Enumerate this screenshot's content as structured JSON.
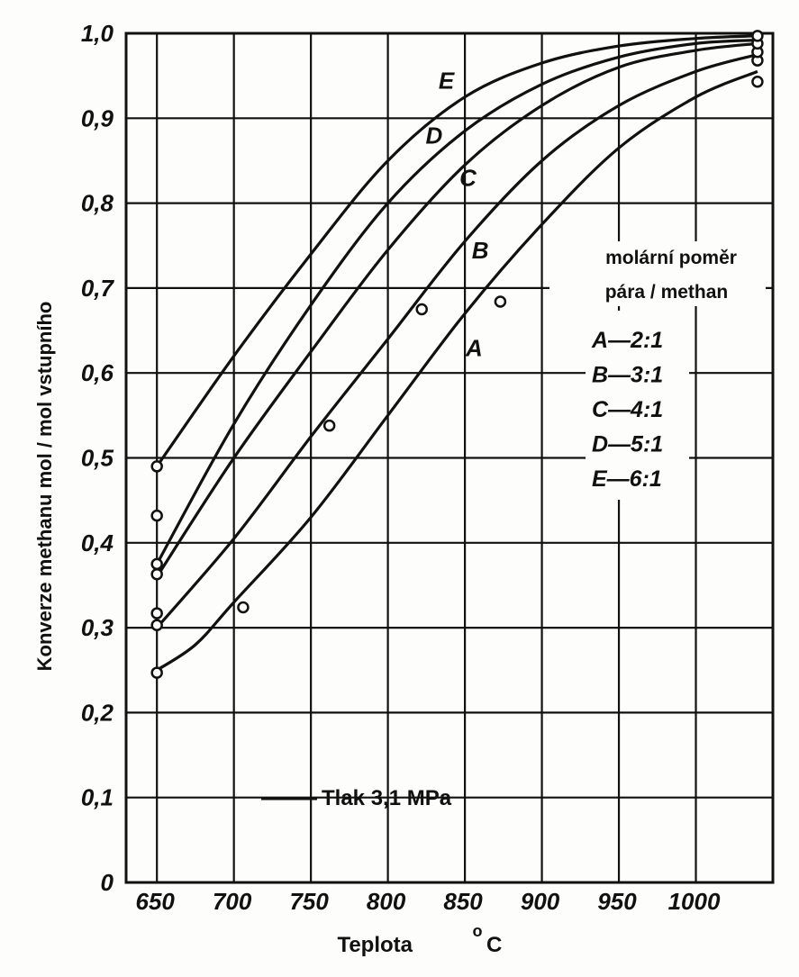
{
  "chart_data": {
    "type": "line",
    "title": "",
    "xlabel": "Teplota",
    "xlabel_unit": "o",
    "xlabel_suffix": "C",
    "ylabel": "Konverze methanu mol / mol vstupního",
    "xlim": [
      630,
      1050
    ],
    "ylim": [
      0,
      1.0
    ],
    "x_ticks": [
      "650",
      "700",
      "750",
      "800",
      "850",
      "900",
      "950",
      "1000"
    ],
    "y_ticks": [
      "0",
      "0,1",
      "0,2",
      "0,3",
      "0,4",
      "0,5",
      "0,6",
      "0,7",
      "0,8",
      "0,9",
      "1,0"
    ],
    "grid": true,
    "annotation": "Tlak 3,1 MPa",
    "legend": {
      "title_line1": "molární poměr",
      "title_line2": "pára / methan",
      "placement": "right",
      "entries": [
        "A—2:1",
        "B—3:1",
        "C—4:1",
        "D—5:1",
        "E—6:1"
      ]
    },
    "series": [
      {
        "name": "A",
        "label_at": [
          856,
          0.62
        ],
        "points": [
          [
            650,
            0.25
          ],
          [
            675,
            0.28
          ],
          [
            700,
            0.33
          ],
          [
            750,
            0.43
          ],
          [
            800,
            0.55
          ],
          [
            850,
            0.67
          ],
          [
            900,
            0.775
          ],
          [
            950,
            0.865
          ],
          [
            1000,
            0.925
          ],
          [
            1040,
            0.955
          ]
        ],
        "markers": [
          [
            650,
            0.247
          ],
          [
            706,
            0.324
          ],
          [
            873,
            0.684
          ],
          [
            1040,
            0.943
          ]
        ]
      },
      {
        "name": "B",
        "label_at": [
          860,
          0.735
        ],
        "points": [
          [
            650,
            0.3
          ],
          [
            700,
            0.405
          ],
          [
            750,
            0.525
          ],
          [
            800,
            0.64
          ],
          [
            850,
            0.755
          ],
          [
            900,
            0.85
          ],
          [
            950,
            0.915
          ],
          [
            1000,
            0.955
          ],
          [
            1040,
            0.975
          ]
        ],
        "markers": [
          [
            650,
            0.303
          ],
          [
            762,
            0.538
          ],
          [
            822,
            0.675
          ],
          [
            1040,
            0.968
          ]
        ]
      },
      {
        "name": "C",
        "label_at": [
          852,
          0.82
        ],
        "points": [
          [
            650,
            0.36
          ],
          [
            700,
            0.5
          ],
          [
            750,
            0.625
          ],
          [
            800,
            0.745
          ],
          [
            850,
            0.845
          ],
          [
            900,
            0.915
          ],
          [
            950,
            0.96
          ],
          [
            1000,
            0.98
          ],
          [
            1040,
            0.988
          ]
        ],
        "markers": [
          [
            650,
            0.317
          ],
          [
            650,
            0.363
          ],
          [
            1040,
            0.978
          ]
        ]
      },
      {
        "name": "D",
        "label_at": [
          830,
          0.87
        ],
        "points": [
          [
            650,
            0.375
          ],
          [
            700,
            0.54
          ],
          [
            750,
            0.68
          ],
          [
            800,
            0.8
          ],
          [
            850,
            0.885
          ],
          [
            900,
            0.94
          ],
          [
            950,
            0.972
          ],
          [
            1000,
            0.988
          ],
          [
            1040,
            0.992
          ]
        ],
        "markers": [
          [
            650,
            0.375
          ],
          [
            1040,
            0.988
          ]
        ]
      },
      {
        "name": "E",
        "label_at": [
          838,
          0.935
        ],
        "points": [
          [
            650,
            0.49
          ],
          [
            700,
            0.62
          ],
          [
            750,
            0.74
          ],
          [
            800,
            0.85
          ],
          [
            850,
            0.925
          ],
          [
            900,
            0.965
          ],
          [
            950,
            0.985
          ],
          [
            1000,
            0.994
          ],
          [
            1040,
            0.997
          ]
        ],
        "markers": [
          [
            650,
            0.49
          ],
          [
            650,
            0.432
          ],
          [
            1040,
            0.997
          ]
        ]
      }
    ]
  }
}
